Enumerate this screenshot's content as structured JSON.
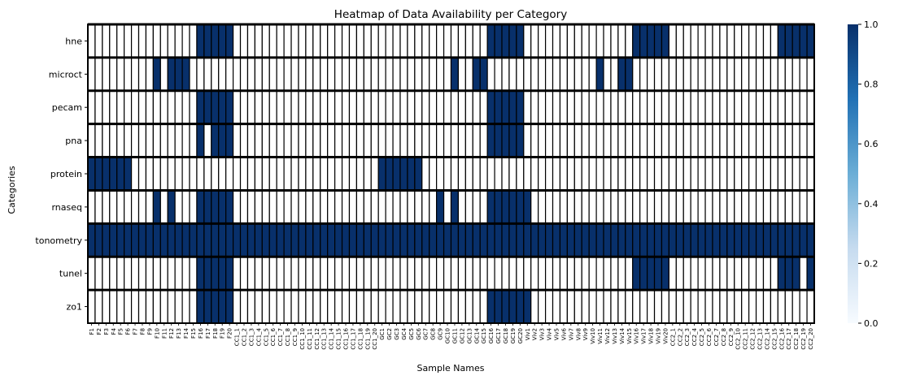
{
  "chart_data": {
    "type": "heatmap",
    "title": "Heatmap of Data Availability per Category",
    "xlabel": "Sample Names",
    "ylabel": "Categories",
    "rows": [
      "hne",
      "microct",
      "pecam",
      "pna",
      "protein",
      "rnaseq",
      "tonometry",
      "tunel",
      "zo1"
    ],
    "columns": [
      "F1",
      "F2",
      "F3",
      "F4",
      "F5",
      "F6",
      "F7",
      "F8",
      "F9",
      "F10",
      "F11",
      "F12",
      "F13",
      "F14",
      "F15",
      "F16",
      "F17",
      "F18",
      "F19",
      "F20",
      "CC1_1",
      "CC1_2",
      "CC1_3",
      "CC1_4",
      "CC1_5",
      "CC1_6",
      "CC1_7",
      "CC1_8",
      "CC1_9",
      "CC1_10",
      "CC1_11",
      "CC1_12",
      "CC1_13",
      "CC1_14",
      "CC1_15",
      "CC1_16",
      "CC1_17",
      "CC1_18",
      "CC1_19",
      "CC1_20",
      "GC1",
      "GC2",
      "GC3",
      "GC4",
      "GC5",
      "GC6",
      "GC7",
      "GC8",
      "GC9",
      "GC10",
      "GC11",
      "GC12",
      "GC13",
      "GC14",
      "GC15",
      "GC16",
      "GC17",
      "GC18",
      "GC19",
      "GC20",
      "Viv1",
      "Viv2",
      "Viv3",
      "Viv4",
      "Viv5",
      "Viv6",
      "Viv7",
      "Viv8",
      "Viv9",
      "Viv10",
      "Viv11",
      "Viv12",
      "Viv13",
      "Viv14",
      "Viv15",
      "Viv16",
      "Viv17",
      "Viv18",
      "Viv19",
      "Viv20",
      "CC2_1",
      "CC2_2",
      "CC2_3",
      "CC2_4",
      "CC2_5",
      "CC2_6",
      "CC2_7",
      "CC2_8",
      "CC2_9",
      "CC2_10",
      "CC2_11",
      "CC2_12",
      "CC2_13",
      "CC2_14",
      "CC2_15",
      "CC2_16",
      "CC2_17",
      "CC2_18",
      "CC2_19",
      "CC2_20"
    ],
    "filled_column_ranges": {
      "hne": [
        [
          16,
          20
        ],
        [
          56,
          60
        ],
        [
          76,
          80
        ],
        [
          96,
          100
        ]
      ],
      "microct": [
        [
          10,
          10
        ],
        [
          12,
          14
        ],
        [
          51,
          51
        ],
        [
          54,
          55
        ],
        [
          71,
          71
        ],
        [
          74,
          75
        ]
      ],
      "pecam": [
        [
          16,
          20
        ],
        [
          56,
          60
        ]
      ],
      "pna": [
        [
          16,
          16
        ],
        [
          18,
          20
        ],
        [
          56,
          60
        ]
      ],
      "protein": [
        [
          1,
          6
        ],
        [
          41,
          46
        ]
      ],
      "rnaseq": [
        [
          10,
          10
        ],
        [
          12,
          12
        ],
        [
          16,
          20
        ],
        [
          49,
          49
        ],
        [
          51,
          51
        ],
        [
          56,
          61
        ]
      ],
      "tonometry": [
        [
          1,
          100
        ]
      ],
      "tunel": [
        [
          16,
          20
        ],
        [
          76,
          80
        ],
        [
          96,
          98
        ],
        [
          100,
          100
        ]
      ],
      "zo1": [
        [
          16,
          20
        ],
        [
          56,
          61
        ]
      ]
    },
    "value_range": [
      0,
      1
    ],
    "colorbar": {
      "ticks": [
        "0.0",
        "0.2",
        "0.4",
        "0.6",
        "0.8",
        "1.0"
      ],
      "colors": [
        "#f7fbff",
        "#c6dbef",
        "#6baed6",
        "#2171b5",
        "#08306b"
      ]
    },
    "cell_colors": {
      "on": "#08306b",
      "off": "#ffffff",
      "line": "#000000"
    }
  }
}
